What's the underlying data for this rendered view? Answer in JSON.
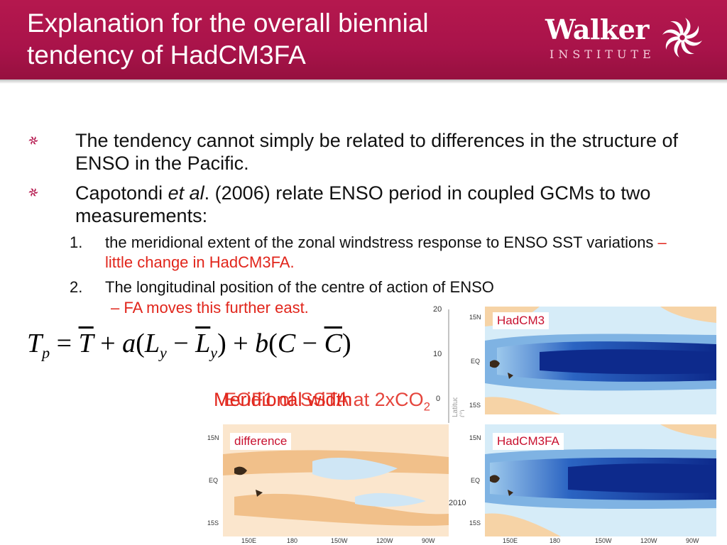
{
  "title": "Explanation for the overall biennial tendency of HadCM3FA",
  "logo": {
    "word": "Walker",
    "sub": "INSTITUTE"
  },
  "bullets": [
    "The tendency cannot simply be related to differences in the structure of ENSO in the Pacific.",
    {
      "pre": "Capotondi ",
      "em": "et al",
      "post": ". (2006) relate ENSO period in coupled GCMs to two measurements:"
    }
  ],
  "numbered": [
    {
      "num": "1.",
      "text": "the meridional extent of the zonal windstress response to ENSO SST variations",
      "note": " – little change in HadCM3FA."
    },
    {
      "num": "2.",
      "text": "The longitudinal position of the centre of action of ENSO",
      "note": "– FA moves this further east."
    }
  ],
  "equation": {
    "lhs": "T",
    "lhs_sub": "p",
    "tbar": "T",
    "a": "a",
    "L": "L",
    "Ly_sub": "y",
    "Lbar": "L",
    "b": "b",
    "C": "C",
    "Cbar": "C"
  },
  "overlay_text": {
    "a": "EOF1 of SSTA at 2xCO",
    "a_sub": "2",
    "b": "Meridional width"
  },
  "maps": {
    "top_right": {
      "label": "HadCM3",
      "lat_ticks": [
        "15N",
        "EQ",
        "15S"
      ]
    },
    "bottom_left": {
      "label": "difference",
      "lat_ticks": [
        "15N",
        "EQ",
        "15S"
      ],
      "lon_ticks": [
        "150E",
        "180",
        "150W",
        "120W",
        "90W"
      ]
    },
    "bottom_right": {
      "label": "HadCM3FA",
      "lat_ticks": [
        "15N",
        "EQ",
        "15S"
      ],
      "lon_ticks": [
        "150E",
        "180",
        "150W",
        "120W",
        "90W"
      ]
    },
    "behind_plot": {
      "y_ticks": [
        "20",
        "10",
        "0"
      ],
      "x_tick": "2010",
      "y_axis_fragment": "Latitude (°)"
    }
  },
  "colors": {
    "header": "#b5184e",
    "accent_red": "#e1251b",
    "map_label": "#c8102e"
  }
}
